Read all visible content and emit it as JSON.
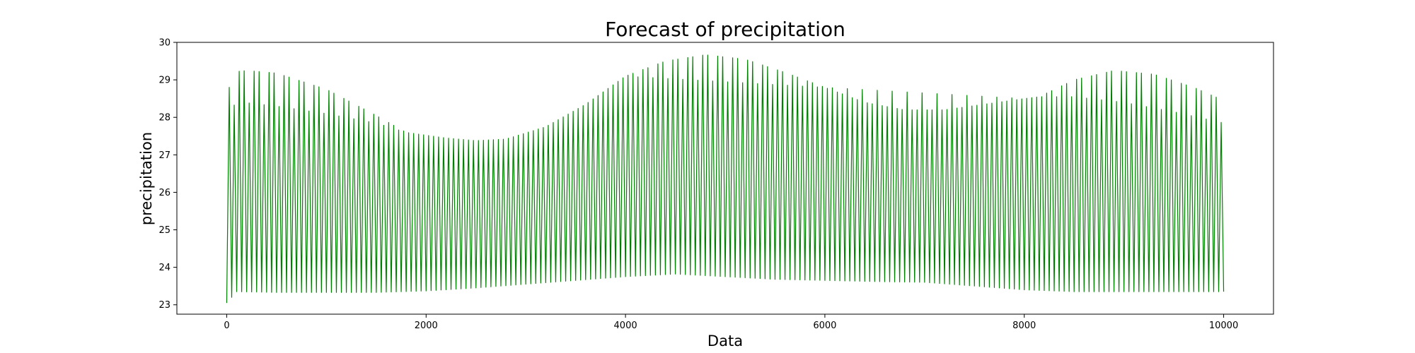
{
  "chart_data": {
    "type": "line",
    "title": "Forecast of precipitation",
    "xlabel": "Data",
    "ylabel": "precipitation",
    "xlim": [
      -500,
      10500
    ],
    "ylim": [
      22.75,
      30.0
    ],
    "x_ticks": [
      0,
      2000,
      4000,
      6000,
      8000,
      10000
    ],
    "x_tick_labels": [
      "0",
      "2000",
      "4000",
      "6000",
      "8000",
      "10000"
    ],
    "y_ticks": [
      23,
      24,
      25,
      26,
      27,
      28,
      29,
      30
    ],
    "y_tick_labels": [
      "23",
      "24",
      "25",
      "26",
      "27",
      "28",
      "29",
      "30"
    ],
    "grid": false,
    "legend": "none",
    "series": [
      {
        "color": "#008000",
        "style": "oscillating line between upper and lower envelopes",
        "x_range": [
          0,
          10000
        ],
        "initial_value": 23.05,
        "period": 50,
        "upper_envelope": {
          "x": [
            0,
            30,
            100,
            200,
            500,
            1000,
            1500,
            1800,
            2200,
            2500,
            2800,
            3200,
            3600,
            4000,
            4400,
            4800,
            5200,
            5600,
            6000,
            6400,
            6800,
            7200,
            7600,
            8000,
            8150,
            8500,
            8900,
            9300,
            9700,
            10000
          ],
          "y": [
            28.05,
            28.95,
            29.22,
            29.25,
            29.18,
            28.75,
            28.05,
            27.6,
            27.45,
            27.38,
            27.42,
            27.75,
            28.35,
            29.1,
            29.5,
            29.67,
            29.55,
            29.2,
            28.8,
            28.4,
            28.2,
            28.2,
            28.35,
            28.5,
            28.55,
            29.0,
            29.25,
            29.15,
            28.8,
            28.45
          ]
        },
        "secondary_peak_envelope": {
          "x": [
            0,
            100,
            500,
            1000,
            1500,
            1800,
            2200,
            2500,
            2800,
            3200,
            3600,
            4000,
            8000,
            8150,
            8500,
            9000,
            9500,
            10000
          ],
          "y": [
            28.05,
            28.42,
            28.3,
            28.1,
            27.85,
            27.6,
            27.45,
            27.38,
            27.42,
            27.75,
            28.35,
            29.1,
            28.5,
            28.55,
            28.55,
            28.4,
            28.15,
            27.85
          ]
        },
        "lower_envelope": {
          "x": [
            0,
            100,
            500,
            1000,
            1500,
            2000,
            2500,
            3000,
            3500,
            4000,
            4500,
            5000,
            5500,
            6000,
            6500,
            7000,
            7500,
            8000,
            8500,
            9000,
            10000
          ],
          "y": [
            23.05,
            23.35,
            23.33,
            23.33,
            23.33,
            23.37,
            23.45,
            23.55,
            23.65,
            23.75,
            23.82,
            23.75,
            23.68,
            23.65,
            23.62,
            23.6,
            23.5,
            23.4,
            23.35,
            23.35,
            23.35
          ]
        }
      }
    ]
  }
}
